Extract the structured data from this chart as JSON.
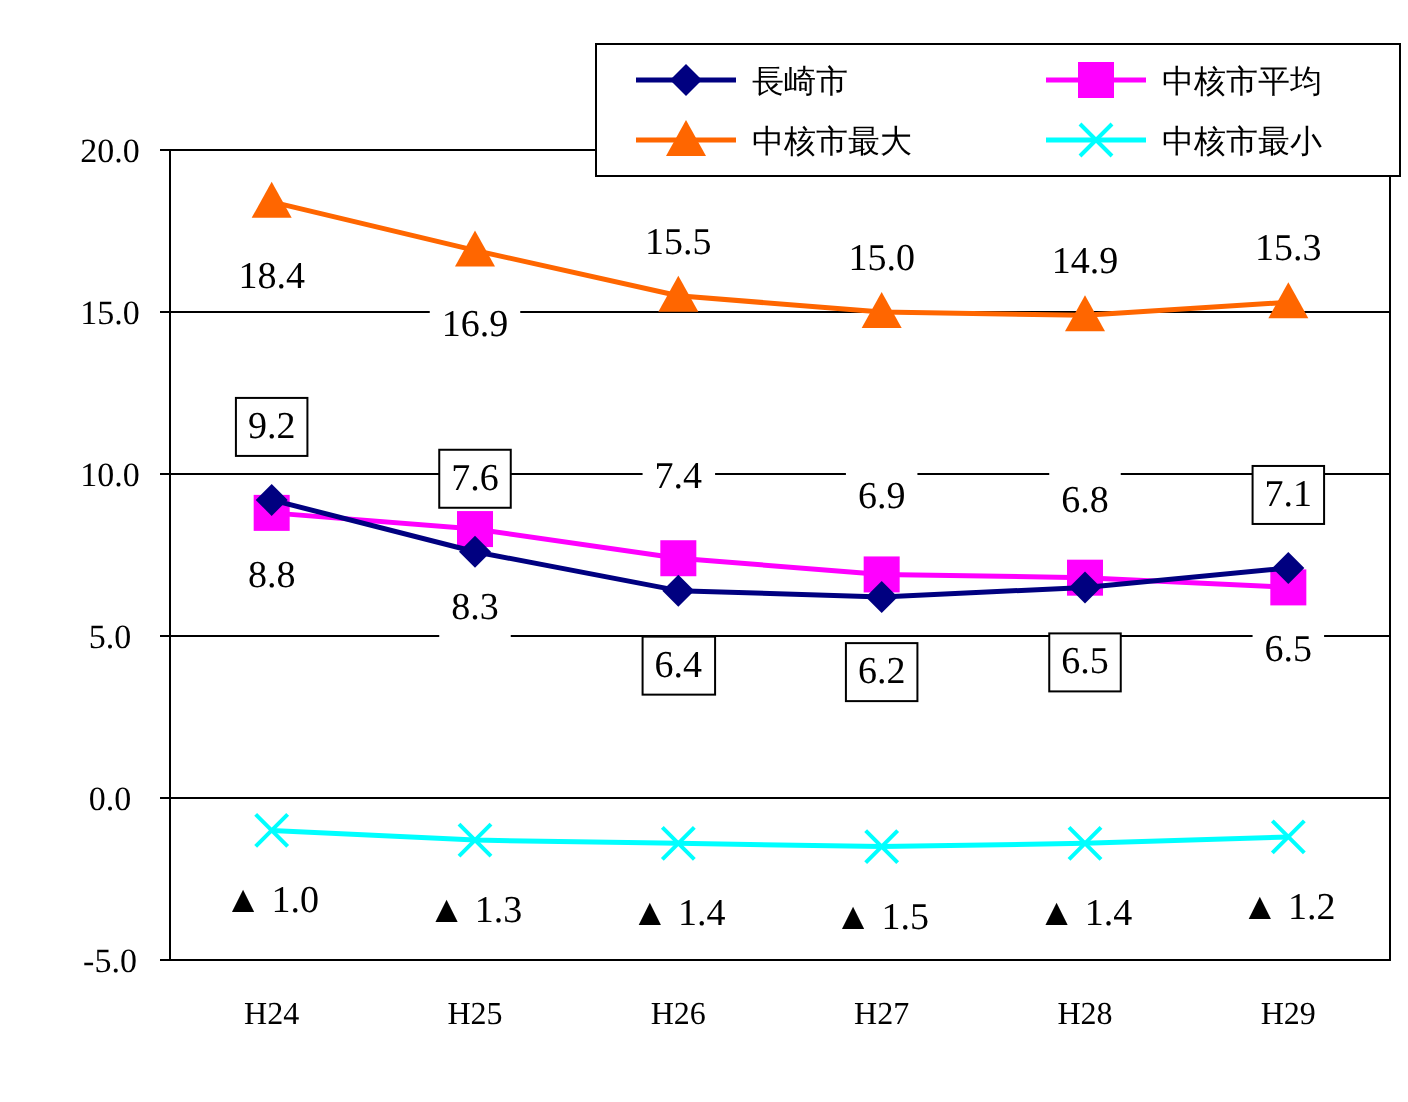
{
  "chart_data": {
    "type": "line",
    "categories": [
      "H24",
      "H25",
      "H26",
      "H27",
      "H28",
      "H29"
    ],
    "series": [
      {
        "name": "長崎市",
        "color": "#000080",
        "marker": "diamond",
        "values": [
          9.2,
          7.6,
          6.4,
          6.2,
          6.5,
          7.1
        ],
        "value_labels": [
          "9.2",
          "7.6",
          "6.4",
          "6.2",
          "6.5",
          "7.1"
        ]
      },
      {
        "name": "中核市平均",
        "color": "#ff00ff",
        "marker": "square",
        "values": [
          8.8,
          8.3,
          7.4,
          6.9,
          6.8,
          6.5
        ],
        "value_labels": [
          "8.8",
          "8.3",
          "7.4",
          "6.9",
          "6.8",
          "6.5"
        ]
      },
      {
        "name": "中核市最大",
        "color": "#ff6600",
        "marker": "triangle",
        "values": [
          18.4,
          16.9,
          15.5,
          15.0,
          14.9,
          15.3
        ],
        "value_labels": [
          "18.4",
          "16.9",
          "15.5",
          "15.0",
          "14.9",
          "15.3"
        ]
      },
      {
        "name": "中核市最小",
        "color": "#00ffff",
        "marker": "cross",
        "values": [
          -1.0,
          -1.3,
          -1.4,
          -1.5,
          -1.4,
          -1.2
        ]
      }
    ],
    "annotations": [
      {
        "text": "▲ 1.0",
        "x": "H24",
        "y": -1.0
      },
      {
        "text": "▲ 1.3",
        "x": "H25",
        "y": -1.3
      },
      {
        "text": "▲ 1.4",
        "x": "H26",
        "y": -1.4
      },
      {
        "text": "▲ 1.5",
        "x": "H27",
        "y": -1.5
      },
      {
        "text": "▲ 1.4",
        "x": "H28",
        "y": -1.4
      },
      {
        "text": "▲ 1.2",
        "x": "H29",
        "y": -1.2
      }
    ],
    "ylim": [
      -5,
      20
    ],
    "yticks": [
      {
        "value": -5,
        "label": "-5.0"
      },
      {
        "value": 0,
        "label": "0.0"
      },
      {
        "value": 5,
        "label": "5.0"
      },
      {
        "value": 10,
        "label": "10.0"
      },
      {
        "value": 15,
        "label": "15.0"
      },
      {
        "value": 20,
        "label": "20.0"
      }
    ],
    "grid": "y",
    "legend": "top right"
  }
}
